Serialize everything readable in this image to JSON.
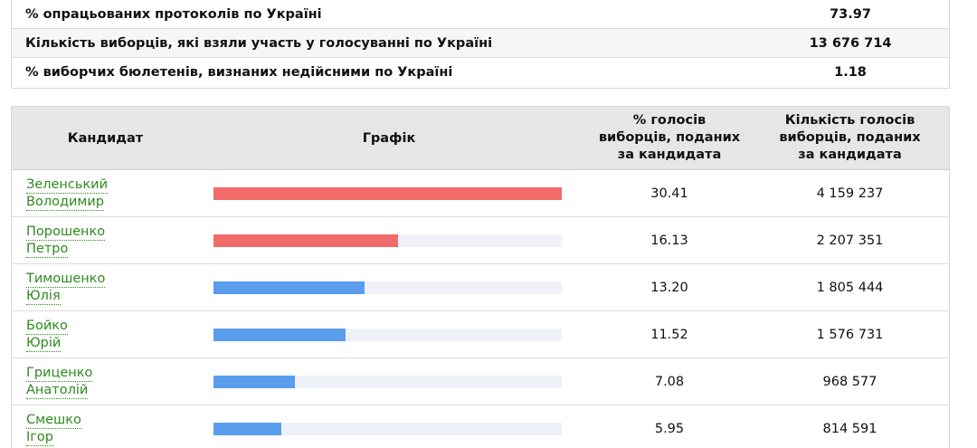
{
  "summary": [
    {
      "label": "% опрацьованих протоколів по Україні",
      "value": "73.97"
    },
    {
      "label": "Кількість виборців, які взяли участь у голосуванні по Україні",
      "value": "13 676 714"
    },
    {
      "label": "% виборчих бюлетенів, визнаних недійсними по Україні",
      "value": "1.18"
    }
  ],
  "table": {
    "headers": {
      "candidate": "Кандидат",
      "chart": "Графік",
      "percent": [
        "% голосів",
        "виборців, поданих",
        "за кандидата"
      ],
      "votes": [
        "Кількість голосів",
        "виборців, поданих",
        "за кандидата"
      ]
    },
    "colors": {
      "leader": "#f26b6b",
      "other": "#5b9ded",
      "track": "#eef2f8",
      "link": "#2e8b1e"
    },
    "rows": [
      {
        "surname": "Зеленський",
        "given": "Володимир",
        "percent": "30.41",
        "percent_value": 30.41,
        "votes": "4 159 237",
        "highlight": true
      },
      {
        "surname": "Порошенко",
        "given": "Петро",
        "percent": "16.13",
        "percent_value": 16.13,
        "votes": "2 207 351",
        "highlight": true
      },
      {
        "surname": "Тимошенко",
        "given": "Юлія",
        "percent": "13.20",
        "percent_value": 13.2,
        "votes": "1 805 444",
        "highlight": false
      },
      {
        "surname": "Бойко",
        "given": "Юрій",
        "percent": "11.52",
        "percent_value": 11.52,
        "votes": "1 576 731",
        "highlight": false
      },
      {
        "surname": "Гриценко",
        "given": "Анатолій",
        "percent": "7.08",
        "percent_value": 7.08,
        "votes": "968 577",
        "highlight": false
      },
      {
        "surname": "Смешко",
        "given": "Ігор",
        "percent": "5.95",
        "percent_value": 5.95,
        "votes": "814 591",
        "highlight": false
      }
    ]
  }
}
